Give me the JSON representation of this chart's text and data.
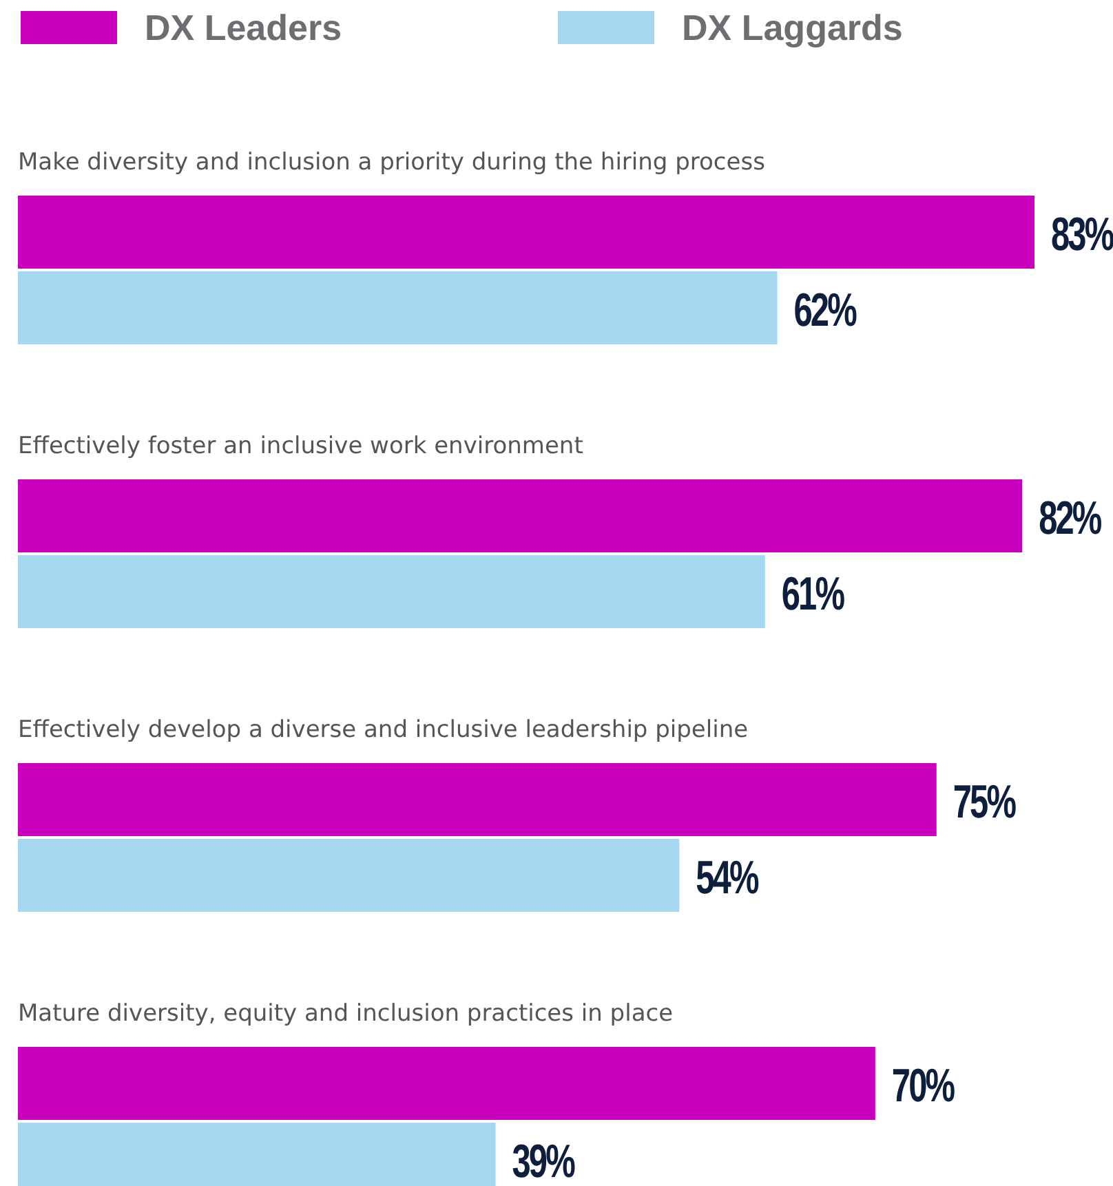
{
  "chart_data": {
    "type": "bar",
    "orientation": "horizontal",
    "legend": "top left",
    "data_labels": true,
    "categories": [
      "Make diversity and inclusion a priority during the hiring process",
      "Effectively foster an inclusive work environment",
      "Effectively develop a diverse and inclusive leadership pipeline",
      "Mature diversity, equity and inclusion practices in place"
    ],
    "series": [
      {
        "name": "DX Leaders",
        "color": "#c800be",
        "values": [
          83,
          82,
          75,
          70
        ],
        "value_labels": [
          "83%",
          "82%",
          "75%",
          "70%"
        ]
      },
      {
        "name": "DX Laggards",
        "color": "#a6d8f2",
        "values": [
          62,
          61,
          54,
          39
        ],
        "value_labels": [
          "62%",
          "61%",
          "54%",
          "39%"
        ]
      }
    ]
  }
}
